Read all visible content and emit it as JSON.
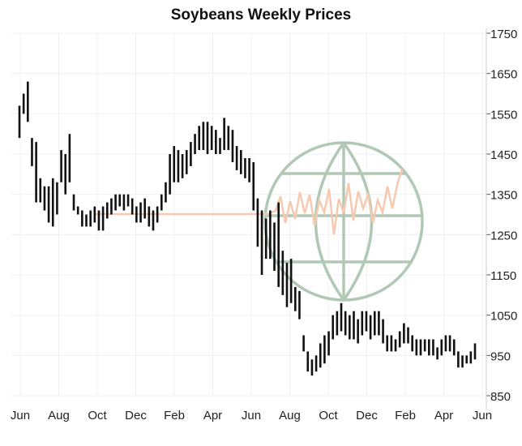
{
  "chart_data": {
    "type": "bar",
    "subtype": "ohlc-range",
    "title": "Soybeans Weekly Prices",
    "xlabel": "",
    "ylabel": "",
    "ylim": [
      850,
      1750
    ],
    "y_ticks": [
      "1750",
      "1650",
      "1550",
      "1450",
      "1350",
      "1250",
      "1150",
      "1050",
      "950",
      "850"
    ],
    "x_ticks": [
      "Jun",
      "Aug",
      "Oct",
      "Dec",
      "Feb",
      "Apr",
      "Jun",
      "Aug",
      "Oct",
      "Dec",
      "Feb",
      "Apr",
      "Jun"
    ],
    "grid": true,
    "grid_color": "#f0f0f0",
    "bar_color": "#111111",
    "series": [
      {
        "values": [
          [
            1490,
            1570
          ],
          [
            1550,
            1600
          ],
          [
            1530,
            1630
          ],
          [
            1420,
            1490
          ],
          [
            1330,
            1480
          ],
          [
            1330,
            1390
          ],
          [
            1310,
            1370
          ],
          [
            1280,
            1370
          ],
          [
            1270,
            1390
          ],
          [
            1300,
            1380
          ],
          [
            1380,
            1460
          ],
          [
            1350,
            1450
          ],
          [
            1380,
            1500
          ],
          [
            1310,
            1350
          ],
          [
            1300,
            1320
          ],
          [
            1270,
            1310
          ],
          [
            1270,
            1300
          ],
          [
            1270,
            1310
          ],
          [
            1280,
            1320
          ],
          [
            1260,
            1310
          ],
          [
            1260,
            1320
          ],
          [
            1290,
            1330
          ],
          [
            1300,
            1340
          ],
          [
            1310,
            1350
          ],
          [
            1320,
            1350
          ],
          [
            1310,
            1350
          ],
          [
            1320,
            1350
          ],
          [
            1300,
            1340
          ],
          [
            1280,
            1320
          ],
          [
            1280,
            1330
          ],
          [
            1290,
            1340
          ],
          [
            1270,
            1320
          ],
          [
            1260,
            1310
          ],
          [
            1280,
            1320
          ],
          [
            1310,
            1350
          ],
          [
            1330,
            1380
          ],
          [
            1350,
            1450
          ],
          [
            1380,
            1470
          ],
          [
            1380,
            1460
          ],
          [
            1390,
            1450
          ],
          [
            1400,
            1460
          ],
          [
            1420,
            1480
          ],
          [
            1450,
            1500
          ],
          [
            1460,
            1520
          ],
          [
            1460,
            1530
          ],
          [
            1450,
            1530
          ],
          [
            1460,
            1520
          ],
          [
            1450,
            1510
          ],
          [
            1450,
            1490
          ],
          [
            1460,
            1540
          ],
          [
            1460,
            1520
          ],
          [
            1430,
            1510
          ],
          [
            1410,
            1470
          ],
          [
            1400,
            1460
          ],
          [
            1390,
            1440
          ],
          [
            1380,
            1440
          ],
          [
            1310,
            1430
          ],
          [
            1220,
            1340
          ],
          [
            1150,
            1310
          ],
          [
            1190,
            1290
          ],
          [
            1190,
            1310
          ],
          [
            1160,
            1280
          ],
          [
            1120,
            1330
          ],
          [
            1100,
            1210
          ],
          [
            1070,
            1180
          ],
          [
            1080,
            1190
          ],
          [
            1060,
            1120
          ],
          [
            1040,
            1110
          ],
          [
            960,
            1000
          ],
          [
            910,
            960
          ],
          [
            900,
            940
          ],
          [
            910,
            950
          ],
          [
            920,
            980
          ],
          [
            930,
            1000
          ],
          [
            950,
            1010
          ],
          [
            990,
            1050
          ],
          [
            1000,
            1060
          ],
          [
            1010,
            1080
          ],
          [
            1000,
            1060
          ],
          [
            990,
            1050
          ],
          [
            990,
            1060
          ],
          [
            980,
            1040
          ],
          [
            1000,
            1060
          ],
          [
            1010,
            1060
          ],
          [
            990,
            1050
          ],
          [
            1000,
            1060
          ],
          [
            1000,
            1060
          ],
          [
            980,
            1040
          ],
          [
            960,
            1000
          ],
          [
            960,
            1000
          ],
          [
            960,
            990
          ],
          [
            970,
            1010
          ],
          [
            980,
            1030
          ],
          [
            980,
            1020
          ],
          [
            960,
            1000
          ],
          [
            950,
            990
          ],
          [
            950,
            990
          ],
          [
            960,
            990
          ],
          [
            950,
            990
          ],
          [
            950,
            990
          ],
          [
            940,
            970
          ],
          [
            950,
            990
          ],
          [
            960,
            1000
          ],
          [
            960,
            1000
          ],
          [
            950,
            990
          ],
          [
            920,
            960
          ],
          [
            920,
            950
          ],
          [
            930,
            950
          ],
          [
            930,
            960
          ],
          [
            940,
            980
          ]
        ]
      }
    ],
    "colors": {
      "globe": "#a9c3b0",
      "flat_line": "#f6c5a9"
    }
  },
  "watermark_icon": "globe-icon"
}
